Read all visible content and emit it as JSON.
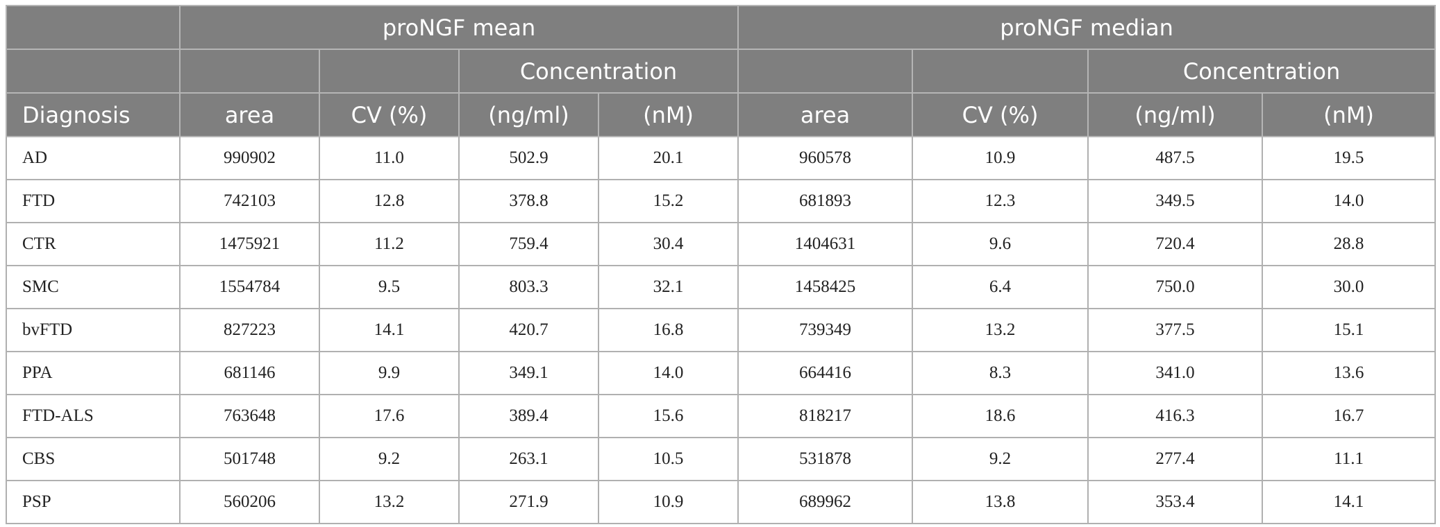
{
  "table": {
    "group_headers": [
      "proNGF mean",
      "proNGF median"
    ],
    "sub_headers": [
      "Concentration",
      "Concentration"
    ],
    "columns": [
      "Diagnosis",
      "area",
      "CV (%)",
      "(ng/ml)",
      "(nM)",
      "area",
      "CV (%)",
      "(ng/ml)",
      "(nM)"
    ],
    "rows": [
      [
        "AD",
        "990902",
        "11.0",
        "502.9",
        "20.1",
        "960578",
        "10.9",
        "487.5",
        "19.5"
      ],
      [
        "FTD",
        "742103",
        "12.8",
        "378.8",
        "15.2",
        "681893",
        "12.3",
        "349.5",
        "14.0"
      ],
      [
        "CTR",
        "1475921",
        "11.2",
        "759.4",
        "30.4",
        "1404631",
        "9.6",
        "720.4",
        "28.8"
      ],
      [
        "SMC",
        "1554784",
        "9.5",
        "803.3",
        "32.1",
        "1458425",
        "6.4",
        "750.0",
        "30.0"
      ],
      [
        "bvFTD",
        "827223",
        "14.1",
        "420.7",
        "16.8",
        "739349",
        "13.2",
        "377.5",
        "15.1"
      ],
      [
        "PPA",
        "681146",
        "9.9",
        "349.1",
        "14.0",
        "664416",
        "8.3",
        "341.0",
        "13.6"
      ],
      [
        "FTD-ALS",
        "763648",
        "17.6",
        "389.4",
        "15.6",
        "818217",
        "18.6",
        "416.3",
        "16.7"
      ],
      [
        "CBS",
        "501748",
        "9.2",
        "263.1",
        "10.5",
        "531878",
        "9.2",
        "277.4",
        "11.1"
      ],
      [
        "PSP",
        "560206",
        "13.2",
        "271.9",
        "10.9",
        "689962",
        "13.8",
        "353.4",
        "14.1"
      ]
    ]
  }
}
